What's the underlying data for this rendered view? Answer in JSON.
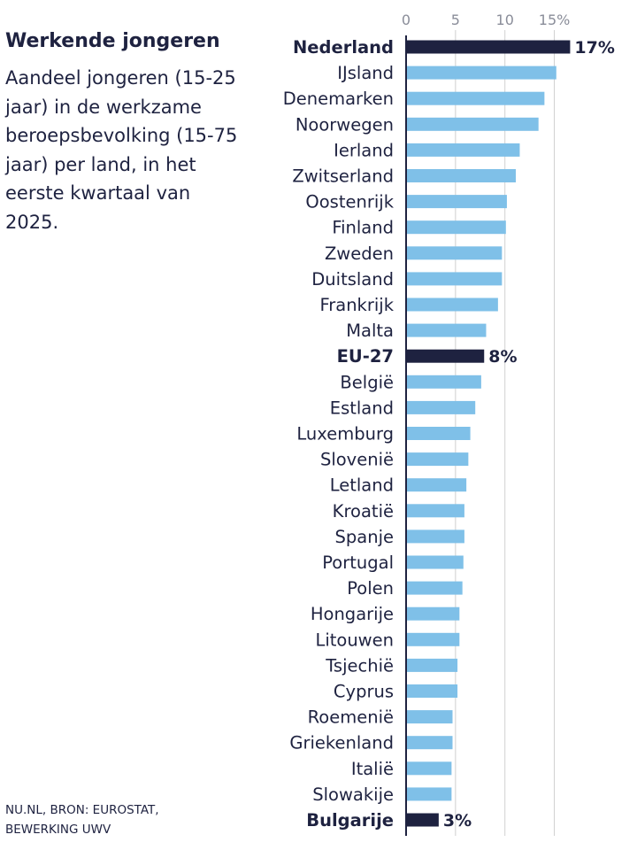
{
  "chart_data": {
    "type": "bar",
    "orientation": "horizontal",
    "title": "Werkende jongeren",
    "subtitle": "Aandeel jongeren (15-25 jaar) in de werkzame beroepsbevolking (15-75 jaar) per land, in het eerste kwartaal van 2025.",
    "source": "NU.NL, BRON: EUROSTAT, BEWERKING UWV",
    "xlim": [
      0,
      17
    ],
    "ticks": [
      {
        "value": 0,
        "label": "0"
      },
      {
        "value": 5,
        "label": "5"
      },
      {
        "value": 10,
        "label": "10"
      },
      {
        "value": 15,
        "label": "15%"
      }
    ],
    "grid": true,
    "colors": {
      "default": "#7fc0e8",
      "highlight": "#1e2240",
      "grid": "#d0d0d0",
      "axis": "#1e2240"
    },
    "bars": [
      {
        "category": "Nederland",
        "value": 16.6,
        "highlight": true,
        "value_label": "17%"
      },
      {
        "category": "IJsland",
        "value": 15.2
      },
      {
        "category": "Denemarken",
        "value": 14.0
      },
      {
        "category": "Noorwegen",
        "value": 13.4
      },
      {
        "category": "Ierland",
        "value": 11.5
      },
      {
        "category": "Zwitserland",
        "value": 11.1
      },
      {
        "category": "Oostenrijk",
        "value": 10.2
      },
      {
        "category": "Finland",
        "value": 10.1
      },
      {
        "category": "Zweden",
        "value": 9.7
      },
      {
        "category": "Duitsland",
        "value": 9.7
      },
      {
        "category": "Frankrijk",
        "value": 9.3
      },
      {
        "category": "Malta",
        "value": 8.1
      },
      {
        "category": "EU-27",
        "value": 7.9,
        "highlight": true,
        "value_label": "8%"
      },
      {
        "category": "België",
        "value": 7.6
      },
      {
        "category": "Estland",
        "value": 7.0
      },
      {
        "category": "Luxemburg",
        "value": 6.5
      },
      {
        "category": "Slovenië",
        "value": 6.3
      },
      {
        "category": "Letland",
        "value": 6.1
      },
      {
        "category": "Kroatië",
        "value": 5.9
      },
      {
        "category": "Spanje",
        "value": 5.9
      },
      {
        "category": "Portugal",
        "value": 5.8
      },
      {
        "category": "Polen",
        "value": 5.7
      },
      {
        "category": "Hongarije",
        "value": 5.4
      },
      {
        "category": "Litouwen",
        "value": 5.4
      },
      {
        "category": "Tsjechië",
        "value": 5.2
      },
      {
        "category": "Cyprus",
        "value": 5.2
      },
      {
        "category": "Roemenië",
        "value": 4.7
      },
      {
        "category": "Griekenland",
        "value": 4.7
      },
      {
        "category": "Italië",
        "value": 4.6
      },
      {
        "category": "Slowakije",
        "value": 4.6
      },
      {
        "category": "Bulgarije",
        "value": 3.3,
        "highlight": true,
        "value_label": "3%"
      }
    ]
  }
}
